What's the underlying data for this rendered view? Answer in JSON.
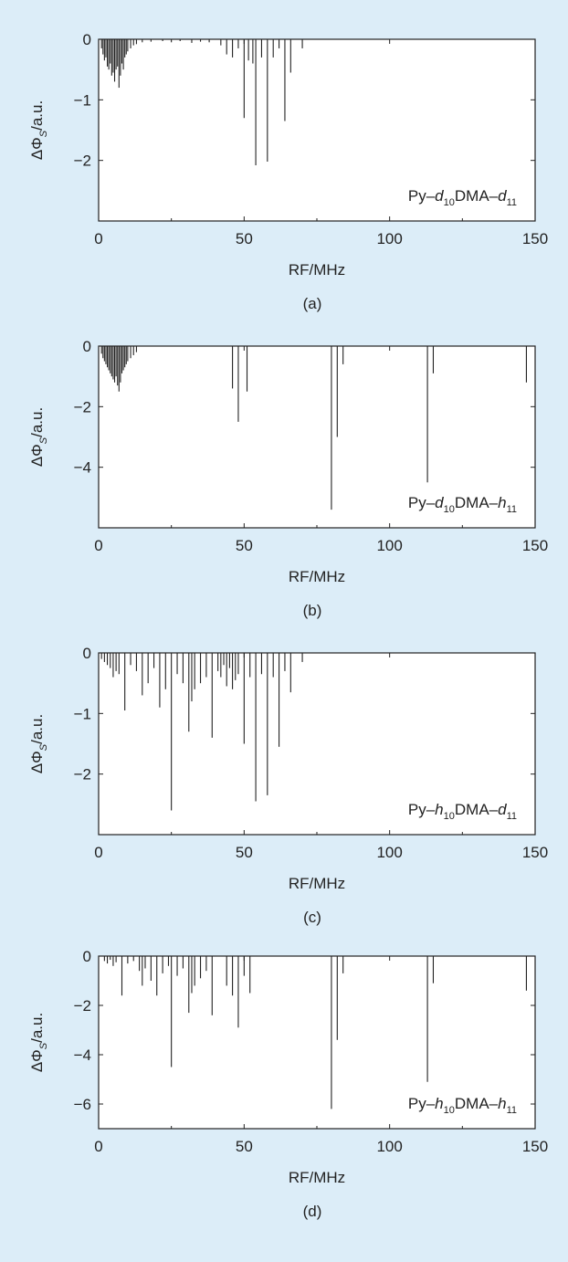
{
  "page": {
    "background": "#dcedf8",
    "plot_background": "#ffffff",
    "line_color": "#222222"
  },
  "chart_data": [
    {
      "type": "bar",
      "panel_label": "(a)",
      "annotation": {
        "prefix": "Py–",
        "p1": "d",
        "s1": "10",
        "mid": "DMA–",
        "p2": "d",
        "s2": "11"
      },
      "xlabel": "RF/MHz",
      "ylabel": {
        "base": "ΔΦ",
        "sub": "S",
        "unit": "/a.u."
      },
      "xlim": [
        0,
        150
      ],
      "ylim": [
        -3,
        0
      ],
      "xticks": [
        0,
        50,
        100,
        150
      ],
      "yticks": [
        0,
        -1,
        -2
      ],
      "x": [
        1,
        1.5,
        2,
        2.5,
        3,
        3.5,
        4,
        4.5,
        5,
        5.5,
        6,
        6.5,
        7,
        7.5,
        8,
        8.5,
        9,
        9.5,
        10,
        11,
        12,
        13,
        15,
        18,
        22,
        25,
        28,
        32,
        35,
        38,
        42,
        44,
        46,
        48,
        50,
        51.5,
        53,
        54,
        56,
        58,
        60,
        62,
        64,
        66,
        70
      ],
      "values": [
        -0.15,
        -0.25,
        -0.35,
        -0.3,
        -0.45,
        -0.5,
        -0.4,
        -0.6,
        -0.55,
        -0.7,
        -0.5,
        -0.45,
        -0.8,
        -0.6,
        -0.4,
        -0.5,
        -0.3,
        -0.25,
        -0.2,
        -0.15,
        -0.1,
        -0.08,
        -0.05,
        -0.04,
        -0.03,
        -0.05,
        -0.03,
        -0.06,
        -0.04,
        -0.05,
        -0.1,
        -0.25,
        -0.3,
        -0.15,
        -1.3,
        -0.35,
        -0.4,
        -2.08,
        -0.3,
        -2.02,
        -0.3,
        -0.15,
        -1.35,
        -0.55,
        -0.15
      ]
    },
    {
      "type": "bar",
      "panel_label": "(b)",
      "annotation": {
        "prefix": "Py–",
        "p1": "d",
        "s1": "10",
        "mid": "DMA–",
        "p2": "h",
        "s2": "11"
      },
      "xlabel": "RF/MHz",
      "ylabel": {
        "base": "ΔΦ",
        "sub": "S",
        "unit": "/a.u."
      },
      "xlim": [
        0,
        150
      ],
      "ylim": [
        -6,
        0
      ],
      "xticks": [
        0,
        50,
        100,
        150
      ],
      "yticks": [
        0,
        -2,
        -4
      ],
      "x": [
        1,
        1.5,
        2,
        2.5,
        3,
        3.5,
        4,
        4.5,
        5,
        5.5,
        6,
        6.5,
        7,
        7.5,
        8,
        8.5,
        9,
        9.5,
        10,
        11,
        12,
        13,
        46,
        48,
        51,
        80,
        82,
        84,
        113,
        115,
        147
      ],
      "values": [
        -0.25,
        -0.4,
        -0.5,
        -0.6,
        -0.7,
        -0.8,
        -0.9,
        -1.0,
        -1.1,
        -1.2,
        -1.0,
        -1.3,
        -1.5,
        -1.2,
        -0.9,
        -0.8,
        -0.7,
        -0.6,
        -0.5,
        -0.4,
        -0.3,
        -0.2,
        -1.4,
        -2.5,
        -1.5,
        -5.4,
        -3.0,
        -0.6,
        -4.5,
        -0.9,
        -1.2
      ]
    },
    {
      "type": "bar",
      "panel_label": "(c)",
      "annotation": {
        "prefix": "Py–",
        "p1": "h",
        "s1": "10",
        "mid": "DMA–",
        "p2": "d",
        "s2": "11"
      },
      "xlabel": "RF/MHz",
      "ylabel": {
        "base": "ΔΦ",
        "sub": "S",
        "unit": "/a.u."
      },
      "xlim": [
        0,
        150
      ],
      "ylim": [
        -3,
        0
      ],
      "xticks": [
        0,
        50,
        100,
        150
      ],
      "yticks": [
        0,
        -1,
        -2
      ],
      "x": [
        1,
        2,
        3,
        4,
        5,
        6,
        7,
        9,
        11,
        13,
        15,
        17,
        19,
        21,
        23,
        25,
        27,
        29,
        31,
        32,
        33,
        35,
        37,
        39,
        41,
        42,
        43,
        44,
        45,
        46,
        47,
        48,
        50,
        52,
        54,
        56,
        58,
        60,
        62,
        64,
        66,
        70
      ],
      "values": [
        -0.1,
        -0.15,
        -0.2,
        -0.25,
        -0.4,
        -0.3,
        -0.35,
        -0.95,
        -0.2,
        -0.3,
        -0.7,
        -0.5,
        -0.25,
        -0.9,
        -0.6,
        -2.6,
        -0.35,
        -0.5,
        -1.3,
        -0.8,
        -0.6,
        -0.5,
        -0.4,
        -1.4,
        -0.3,
        -0.4,
        -0.2,
        -0.55,
        -0.25,
        -0.6,
        -0.45,
        -0.35,
        -1.5,
        -0.4,
        -2.45,
        -0.35,
        -2.35,
        -0.4,
        -1.55,
        -0.3,
        -0.65,
        -0.15
      ]
    },
    {
      "type": "bar",
      "panel_label": "(d)",
      "annotation": {
        "prefix": "Py–",
        "p1": "h",
        "s1": "10",
        "mid": "DMA–",
        "p2": "h",
        "s2": "11"
      },
      "xlabel": "RF/MHz",
      "ylabel": {
        "base": "ΔΦ",
        "sub": "S",
        "unit": "/a.u."
      },
      "xlim": [
        0,
        150
      ],
      "ylim": [
        -7,
        0
      ],
      "xticks": [
        0,
        50,
        100,
        150
      ],
      "yticks": [
        0,
        -2,
        -4,
        -6
      ],
      "x": [
        2,
        3,
        4,
        5,
        6,
        8,
        10,
        12,
        14,
        15,
        16,
        18,
        20,
        22,
        24,
        25,
        27,
        29,
        31,
        32,
        33,
        35,
        37,
        39,
        44,
        46,
        48,
        50,
        52,
        80,
        82,
        84,
        113,
        115,
        147
      ],
      "values": [
        -0.2,
        -0.3,
        -0.15,
        -0.4,
        -0.25,
        -1.6,
        -0.3,
        -0.2,
        -0.6,
        -1.2,
        -0.5,
        -1.0,
        -1.6,
        -0.7,
        -0.4,
        -4.5,
        -0.8,
        -0.5,
        -2.3,
        -1.5,
        -1.2,
        -0.9,
        -0.6,
        -2.4,
        -1.2,
        -1.6,
        -2.9,
        -0.8,
        -1.5,
        -6.2,
        -3.4,
        -0.7,
        -5.1,
        -1.1,
        -1.4
      ]
    }
  ]
}
